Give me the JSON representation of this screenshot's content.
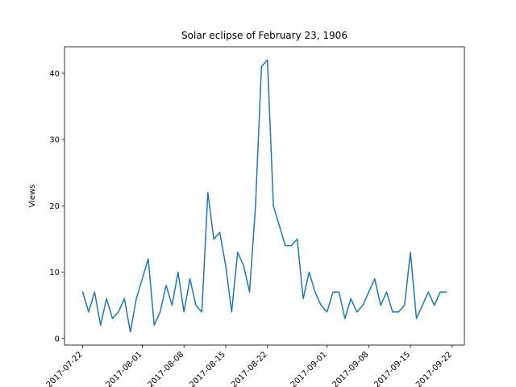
{
  "chart_data": {
    "type": "line",
    "title": "Solar eclipse of February 23, 1906",
    "xlabel": "",
    "ylabel": "Views",
    "x_start": "2017-07-22",
    "x_tick_labels": [
      "2017-07-22",
      "2017-08-01",
      "2017-08-08",
      "2017-08-15",
      "2017-08-22",
      "2017-09-01",
      "2017-09-08",
      "2017-09-15",
      "2017-09-22"
    ],
    "y_ticks": [
      0,
      10,
      20,
      30,
      40
    ],
    "ylim": [
      -1,
      44
    ],
    "grid": false,
    "legend": "none",
    "series": [
      {
        "color": "#1f77b4",
        "x": [
          "2017-07-22",
          "2017-07-23",
          "2017-07-24",
          "2017-07-25",
          "2017-07-26",
          "2017-07-27",
          "2017-07-28",
          "2017-07-29",
          "2017-07-30",
          "2017-07-31",
          "2017-08-01",
          "2017-08-02",
          "2017-08-03",
          "2017-08-04",
          "2017-08-05",
          "2017-08-06",
          "2017-08-07",
          "2017-08-08",
          "2017-08-09",
          "2017-08-10",
          "2017-08-11",
          "2017-08-12",
          "2017-08-13",
          "2017-08-14",
          "2017-08-15",
          "2017-08-16",
          "2017-08-17",
          "2017-08-18",
          "2017-08-19",
          "2017-08-20",
          "2017-08-21",
          "2017-08-22",
          "2017-08-23",
          "2017-08-24",
          "2017-08-25",
          "2017-08-26",
          "2017-08-27",
          "2017-08-28",
          "2017-08-29",
          "2017-08-30",
          "2017-08-31",
          "2017-09-01",
          "2017-09-02",
          "2017-09-03",
          "2017-09-04",
          "2017-09-05",
          "2017-09-06",
          "2017-09-07",
          "2017-09-08",
          "2017-09-09",
          "2017-09-10",
          "2017-09-11",
          "2017-09-12",
          "2017-09-13",
          "2017-09-14",
          "2017-09-15",
          "2017-09-16",
          "2017-09-17",
          "2017-09-18",
          "2017-09-19",
          "2017-09-20",
          "2017-09-21"
        ],
        "values": [
          7,
          4,
          7,
          2,
          6,
          3,
          4,
          6,
          1,
          6,
          9,
          12,
          2,
          4,
          8,
          5,
          10,
          4,
          9,
          5,
          4,
          22,
          15,
          16,
          11,
          4,
          13,
          11,
          7,
          20,
          41,
          42,
          20,
          17,
          14,
          14,
          15,
          6,
          10,
          7,
          5,
          4,
          7,
          7,
          3,
          6,
          4,
          5,
          7,
          9,
          5,
          7,
          4,
          4,
          5,
          13,
          3,
          5,
          7,
          5,
          7,
          7
        ]
      }
    ]
  }
}
